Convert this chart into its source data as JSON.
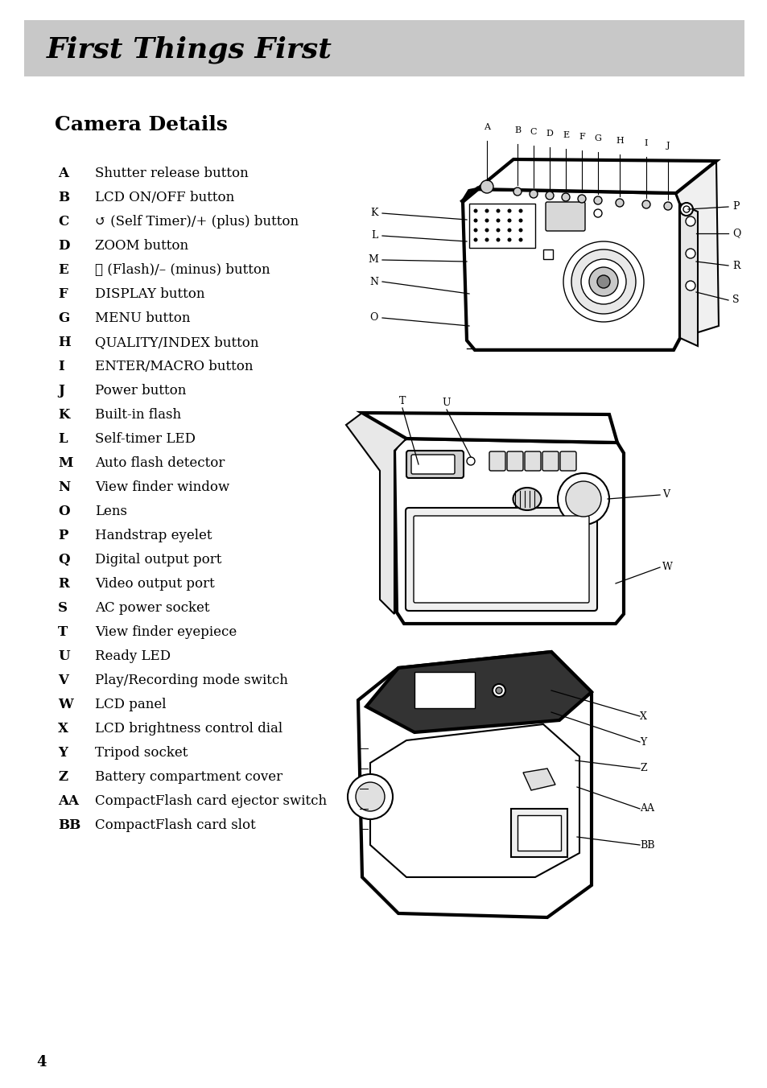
{
  "title": "First Things First",
  "subtitle": "Camera Details",
  "title_bg": "#c8c8c8",
  "bg_color": "#ffffff",
  "page_number": "4",
  "items": [
    [
      "A",
      "Shutter release button"
    ],
    [
      "B",
      "LCD ON/OFF button"
    ],
    [
      "C",
      "\u0000 (Self Timer)/+ (plus) button"
    ],
    [
      "D",
      "ZOOM button"
    ],
    [
      "E",
      "\u0001 (Flash)/– (minus) button"
    ],
    [
      "F",
      "DISPLAY button"
    ],
    [
      "G",
      "MENU button"
    ],
    [
      "H",
      "QUALITY/INDEX button"
    ],
    [
      "I",
      "ENTER/MACRO button"
    ],
    [
      "J",
      "Power button"
    ],
    [
      "K",
      "Built-in flash"
    ],
    [
      "L",
      "Self-timer LED"
    ],
    [
      "M",
      "Auto flash detector"
    ],
    [
      "N",
      "View finder window"
    ],
    [
      "O",
      "Lens"
    ],
    [
      "P",
      "Handstrap eyelet"
    ],
    [
      "Q",
      "Digital output port"
    ],
    [
      "R",
      "Video output port"
    ],
    [
      "S",
      "AC power socket"
    ],
    [
      "T",
      "View finder eyepiece"
    ],
    [
      "U",
      "Ready LED"
    ],
    [
      "V",
      "Play/Recording mode switch"
    ],
    [
      "W",
      "LCD panel"
    ],
    [
      "X",
      "LCD brightness control dial"
    ],
    [
      "Y",
      "Tripod socket"
    ],
    [
      "Z",
      "Battery compartment cover"
    ],
    [
      "AA",
      "CompactFlash card ejector switch"
    ],
    [
      "BB",
      "CompactFlash card slot"
    ]
  ],
  "item_descriptions": [
    [
      "A",
      "Shutter release button"
    ],
    [
      "B",
      "LCD ON/OFF button"
    ],
    [
      "C",
      "(Self Timer)/+ (plus) button"
    ],
    [
      "D",
      "ZOOM button"
    ],
    [
      "E",
      "(Flash)/– (minus) button"
    ],
    [
      "F",
      "DISPLAY button"
    ],
    [
      "G",
      "MENU button"
    ],
    [
      "H",
      "QUALITY/INDEX button"
    ],
    [
      "I",
      "ENTER/MACRO button"
    ],
    [
      "J",
      "Power button"
    ],
    [
      "K",
      "Built-in flash"
    ],
    [
      "L",
      "Self-timer LED"
    ],
    [
      "M",
      "Auto flash detector"
    ],
    [
      "N",
      "View finder window"
    ],
    [
      "O",
      "Lens"
    ],
    [
      "P",
      "Handstrap eyelet"
    ],
    [
      "Q",
      "Digital output port"
    ],
    [
      "R",
      "Video output port"
    ],
    [
      "S",
      "AC power socket"
    ],
    [
      "T",
      "View finder eyepiece"
    ],
    [
      "U",
      "Ready LED"
    ],
    [
      "V",
      "Play/Recording mode switch"
    ],
    [
      "W",
      "LCD panel"
    ],
    [
      "X",
      "LCD brightness control dial"
    ],
    [
      "Y",
      "Tripod socket"
    ],
    [
      "Z",
      "Battery compartment cover"
    ],
    [
      "AA",
      "CompactFlash card ejector switch"
    ],
    [
      "BB",
      "CompactFlash card slot"
    ]
  ]
}
